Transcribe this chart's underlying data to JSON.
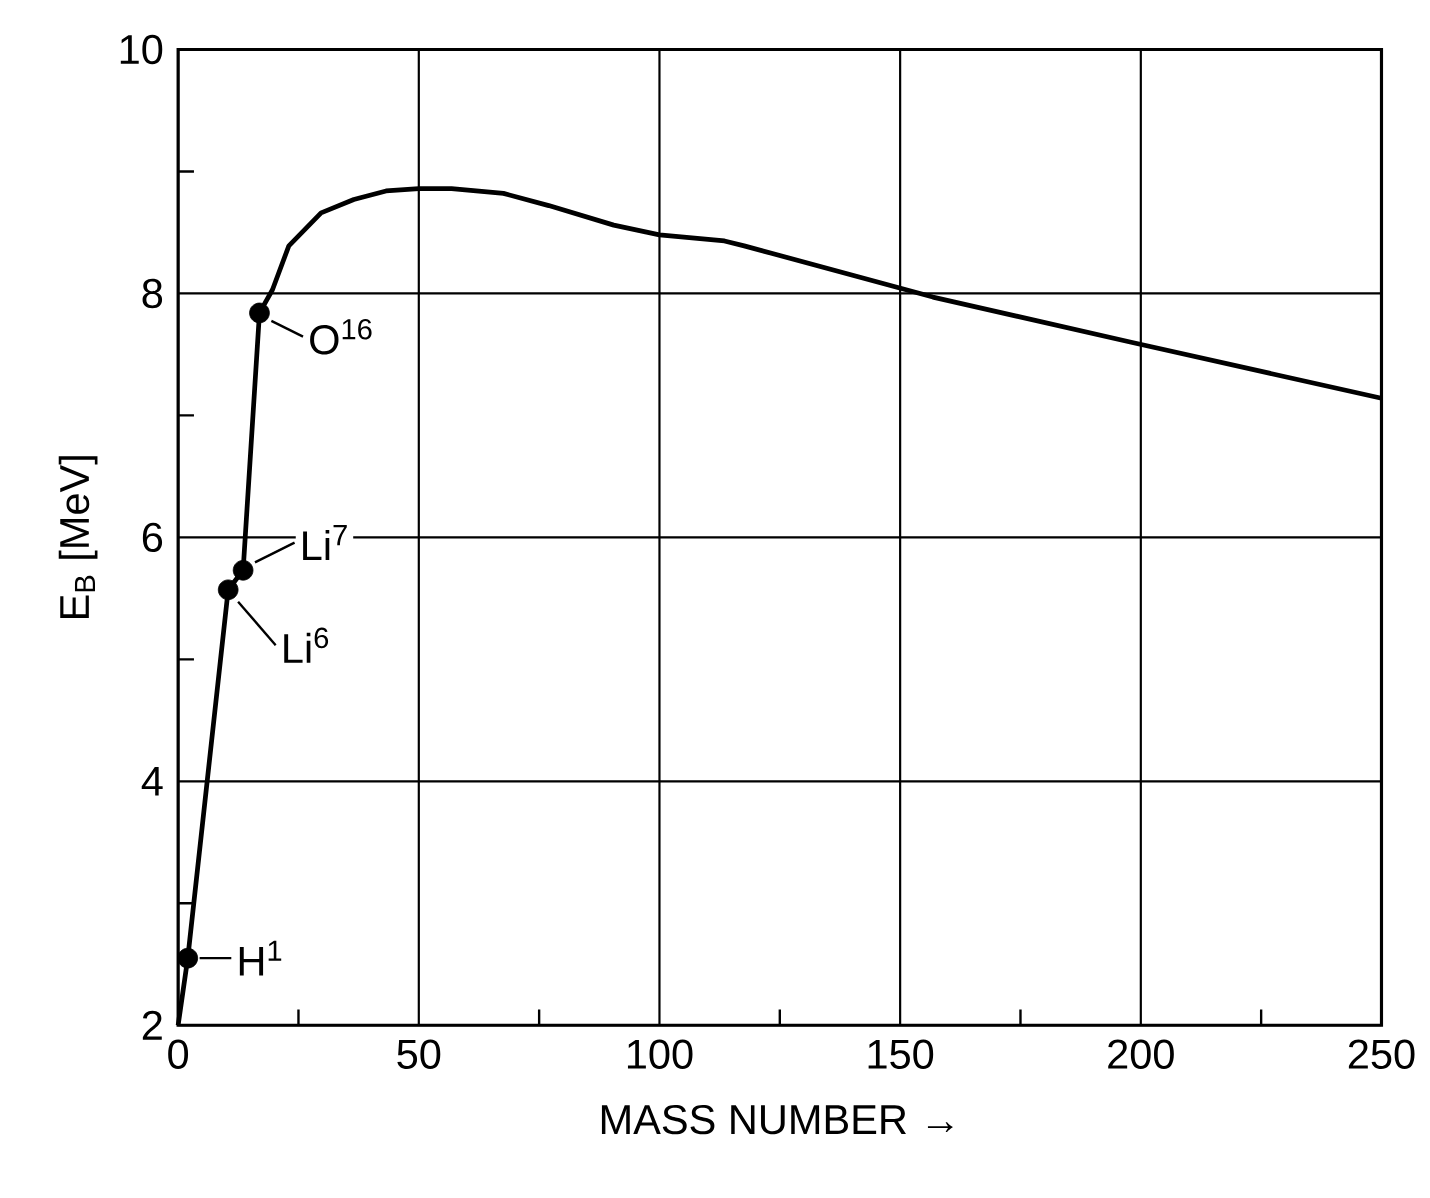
{
  "chart_data": {
    "type": "line",
    "xlabel": "MASS NUMBER →",
    "ylabel": "E$_{B}$ [MeV]",
    "xlim": [
      0,
      250
    ],
    "ylim": [
      2,
      10
    ],
    "xticks": [
      0,
      50,
      100,
      150,
      200,
      250
    ],
    "yticks": [
      2,
      4,
      6,
      8,
      10
    ],
    "grid": true,
    "series": [
      {
        "color": "#000000",
        "marker": "none",
        "x": [
          0,
          2,
          10.4,
          13.5,
          16.9,
          19.6,
          23,
          29.7,
          36.5,
          43.2,
          50,
          56.8,
          67.6,
          77,
          90.5,
          100,
          113.5,
          117.6,
          156.8,
          198,
          250
        ],
        "values": [
          2,
          2.55,
          5.57,
          5.73,
          7.84,
          8.03,
          8.39,
          8.66,
          8.77,
          8.84,
          8.86,
          8.86,
          8.82,
          8.72,
          8.56,
          8.48,
          8.43,
          8.39,
          7.97,
          7.6,
          7.14
        ]
      },
      {
        "type": "scatter",
        "color": "#000000",
        "marker": "circle",
        "x": [
          2,
          10.4,
          13.5,
          16.9
        ],
        "values": [
          2.55,
          5.57,
          5.73,
          7.84
        ]
      }
    ],
    "annotations": [
      {
        "text": "H$^{1}$",
        "x": 2,
        "y": 2.55
      },
      {
        "text": "Li$^{6}$",
        "x": 10.4,
        "y": 5.57
      },
      {
        "text": "Li$^{7}$",
        "x": 13.5,
        "y": 5.73
      },
      {
        "text": "O$^{16}$",
        "x": 16.9,
        "y": 7.84
      }
    ]
  }
}
